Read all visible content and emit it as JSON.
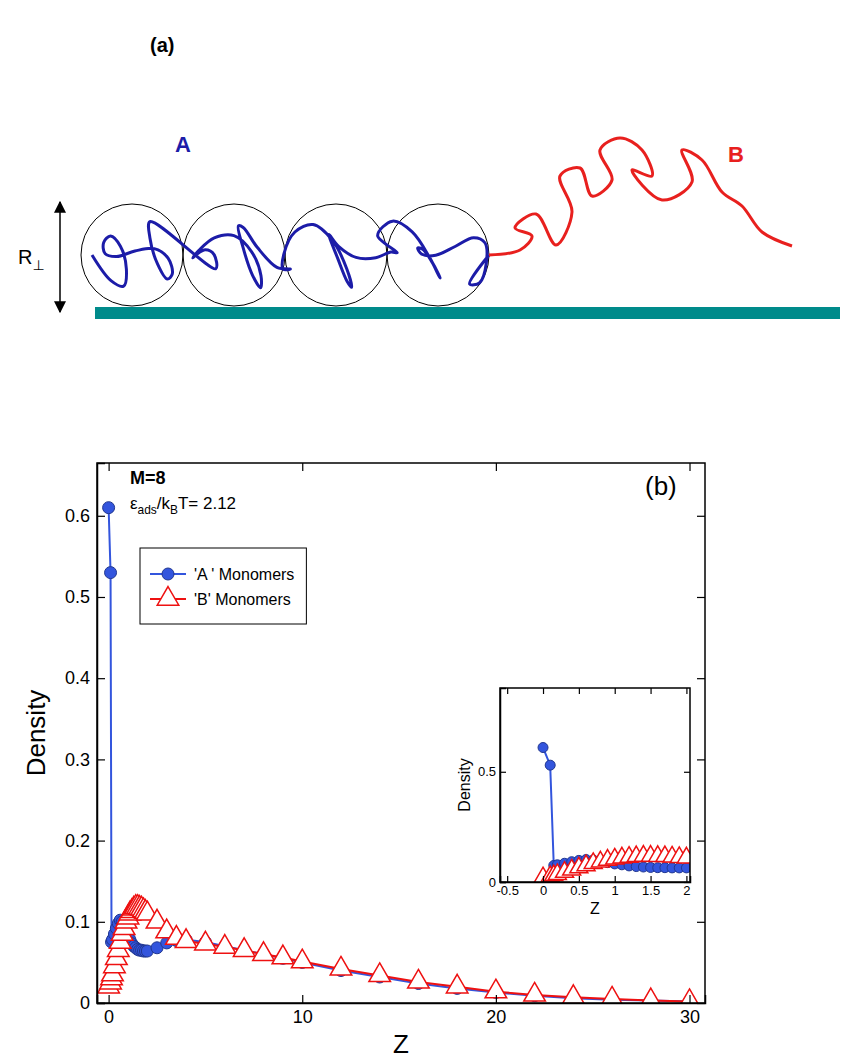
{
  "diagram": {
    "panel_label": "(a)",
    "dimension_label": "R⊥",
    "blocks": [
      {
        "label": "A",
        "color": "#1c1ca8"
      },
      {
        "label": "B",
        "color": "#e8201e"
      }
    ]
  },
  "chart_data": [
    {
      "type": "line",
      "panel_label": "(b)",
      "annotations": [
        "M=8",
        "εads/kBT= 2.12"
      ],
      "xlabel": "Z",
      "ylabel": "Density",
      "legend": "upper left",
      "xlim": [
        -0.6,
        30.8
      ],
      "xticks": [
        0,
        10,
        20,
        30
      ],
      "ylim": [
        0,
        0.665
      ],
      "yticks": [
        0,
        0.1,
        0.2,
        0.3,
        0.4,
        0.5,
        0.6
      ],
      "x": [
        0,
        0.1,
        0.15,
        0.2,
        0.3,
        0.4,
        0.5,
        0.6,
        0.7,
        0.8,
        0.9,
        1,
        1.1,
        1.2,
        1.3,
        1.4,
        1.5,
        1.6,
        1.7,
        1.8,
        1.9,
        2,
        2.5,
        3,
        3.5,
        4,
        5,
        6,
        7,
        8,
        9,
        10,
        12,
        14,
        16,
        18,
        20,
        22,
        24,
        26,
        28,
        30
      ],
      "series": [
        {
          "name": "'A ' Monomers",
          "color": "#3355dd",
          "marker": "circle",
          "values": [
            0.61,
            0.53,
            0.075,
            0.078,
            0.085,
            0.092,
            0.098,
            0.102,
            0.1,
            0.095,
            0.088,
            0.082,
            0.078,
            0.073,
            0.07,
            0.068,
            0.066,
            0.065,
            0.065,
            0.064,
            0.064,
            0.064,
            0.068,
            0.074,
            0.077,
            0.078,
            0.075,
            0.07,
            0.065,
            0.06,
            0.055,
            0.05,
            0.04,
            0.032,
            0.024,
            0.018,
            0.013,
            0.009,
            0.006,
            0.004,
            0.003,
            0.002
          ]
        },
        {
          "name": "'B' Monomers",
          "color": "#ee1111",
          "marker": "triangle",
          "values": [
            0.02,
            0.025,
            0.03,
            0.035,
            0.045,
            0.055,
            0.065,
            0.075,
            0.085,
            0.092,
            0.1,
            0.105,
            0.11,
            0.113,
            0.116,
            0.118,
            0.118,
            0.117,
            0.116,
            0.114,
            0.112,
            0.11,
            0.1,
            0.088,
            0.08,
            0.076,
            0.073,
            0.069,
            0.065,
            0.06,
            0.056,
            0.051,
            0.042,
            0.034,
            0.026,
            0.02,
            0.014,
            0.01,
            0.007,
            0.005,
            0.003,
            0.002
          ]
        }
      ]
    },
    {
      "type": "line",
      "xlabel": "Z",
      "ylabel": "Density",
      "xlim": [
        -0.6,
        2.05
      ],
      "xticks": [
        -0.5,
        0,
        0.5,
        1,
        1.5,
        2
      ],
      "ylim": [
        0,
        0.88
      ],
      "yticks": [
        0,
        0.5
      ],
      "x": [
        0,
        0.1,
        0.15,
        0.2,
        0.3,
        0.4,
        0.5,
        0.6,
        0.7,
        0.8,
        0.9,
        1,
        1.1,
        1.2,
        1.3,
        1.4,
        1.5,
        1.6,
        1.7,
        1.8,
        1.9,
        2
      ],
      "series": [
        {
          "name": "'A ' Monomers",
          "color": "#3355dd",
          "marker": "circle",
          "values": [
            0.61,
            0.53,
            0.075,
            0.078,
            0.085,
            0.092,
            0.098,
            0.102,
            0.1,
            0.095,
            0.088,
            0.082,
            0.078,
            0.073,
            0.07,
            0.068,
            0.066,
            0.065,
            0.065,
            0.064,
            0.064,
            0.064
          ]
        },
        {
          "name": "'B' Monomers",
          "color": "#ee1111",
          "marker": "triangle",
          "values": [
            0.02,
            0.025,
            0.03,
            0.035,
            0.045,
            0.055,
            0.065,
            0.075,
            0.085,
            0.092,
            0.1,
            0.105,
            0.11,
            0.113,
            0.116,
            0.118,
            0.118,
            0.117,
            0.116,
            0.114,
            0.112,
            0.11
          ]
        }
      ]
    }
  ]
}
